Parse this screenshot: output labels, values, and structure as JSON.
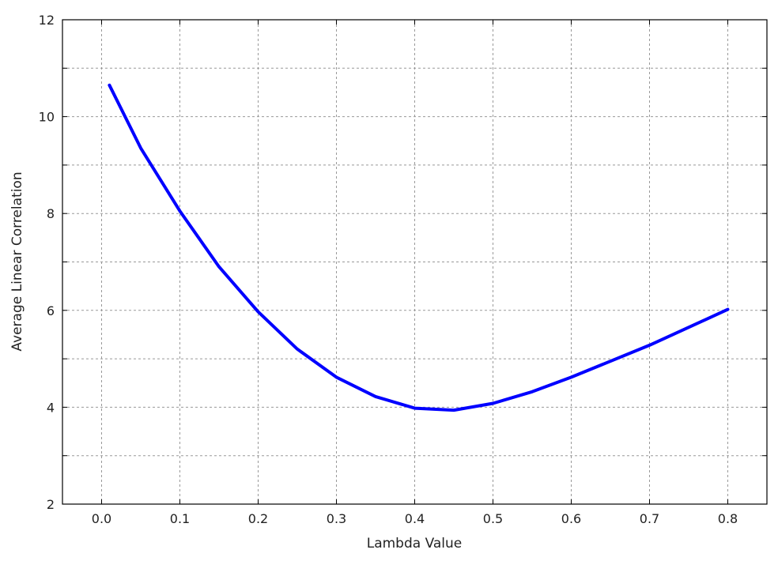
{
  "chart_data": {
    "type": "line",
    "title": "",
    "xlabel": "Lambda Value",
    "ylabel": "Average Linear Correlation",
    "xlim": [
      -0.05,
      0.85
    ],
    "ylim": [
      2,
      12
    ],
    "xticks": [
      0.0,
      0.1,
      0.2,
      0.3,
      0.4,
      0.5,
      0.6,
      0.7,
      0.8
    ],
    "xtick_labels": [
      "0.0",
      "0.1",
      "0.2",
      "0.3",
      "0.4",
      "0.5",
      "0.6",
      "0.7",
      "0.8"
    ],
    "yticks": [
      2,
      4,
      6,
      8,
      10,
      12
    ],
    "ytick_labels": [
      "2",
      "4",
      "6",
      "8",
      "10",
      "12"
    ],
    "y_minor_grid": [
      3,
      5,
      7,
      9,
      11
    ],
    "grid": true,
    "series": [
      {
        "color": "#0000ff",
        "x": [
          0.01,
          0.05,
          0.1,
          0.15,
          0.2,
          0.25,
          0.3,
          0.35,
          0.4,
          0.45,
          0.5,
          0.55,
          0.6,
          0.7,
          0.8
        ],
        "y": [
          10.65,
          9.35,
          8.05,
          6.9,
          5.97,
          5.2,
          4.62,
          4.22,
          3.98,
          3.94,
          4.08,
          4.32,
          4.62,
          5.28,
          6.02
        ]
      }
    ]
  }
}
